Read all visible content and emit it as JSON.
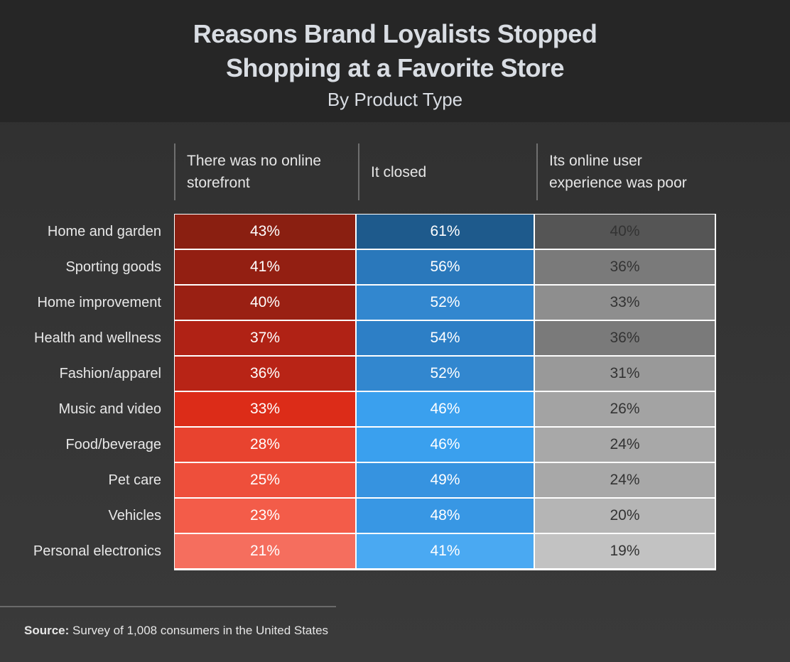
{
  "chart_data": {
    "type": "table",
    "title": "Reasons Brand Loyalists Stopped Shopping at a Favorite Store",
    "subtitle": "By Product Type",
    "columns": [
      "There was no online storefront",
      "It closed",
      "Its online user experience was poor"
    ],
    "rows": [
      {
        "label": "Home and garden",
        "values": [
          "43%",
          "61%",
          "40%"
        ],
        "colors": [
          "#8a1f11",
          "#1e5a8c",
          "#555555"
        ]
      },
      {
        "label": "Sporting goods",
        "values": [
          "41%",
          "56%",
          "36%"
        ],
        "colors": [
          "#931f12",
          "#2a78bb",
          "#7a7a7a"
        ]
      },
      {
        "label": "Home improvement",
        "values": [
          "40%",
          "52%",
          "33%"
        ],
        "colors": [
          "#9a2013",
          "#3287cf",
          "#8e8e8e"
        ]
      },
      {
        "label": "Health and wellness",
        "values": [
          "37%",
          "54%",
          "36%"
        ],
        "colors": [
          "#b02215",
          "#2d7fc6",
          "#7a7a7a"
        ]
      },
      {
        "label": "Fashion/apparel",
        "values": [
          "36%",
          "52%",
          "31%"
        ],
        "colors": [
          "#b82416",
          "#3287cf",
          "#999999"
        ]
      },
      {
        "label": "Music and video",
        "values": [
          "33%",
          "46%",
          "26%"
        ],
        "colors": [
          "#dc2c18",
          "#3aa0ee",
          "#a3a3a3"
        ]
      },
      {
        "label": "Food/beverage",
        "values": [
          "28%",
          "46%",
          "24%"
        ],
        "colors": [
          "#e8432f",
          "#3aa0ee",
          "#a8a8a8"
        ]
      },
      {
        "label": "Pet care",
        "values": [
          "25%",
          "49%",
          "24%"
        ],
        "colors": [
          "#ee4f3b",
          "#3693e0",
          "#a8a8a8"
        ]
      },
      {
        "label": "Vehicles",
        "values": [
          "23%",
          "48%",
          "20%"
        ],
        "colors": [
          "#f35c49",
          "#3897e4",
          "#b5b5b5"
        ]
      },
      {
        "label": "Personal electronics",
        "values": [
          "21%",
          "41%",
          "19%"
        ],
        "colors": [
          "#f56e5e",
          "#4aa9f2",
          "#c2c2c2"
        ]
      }
    ],
    "text_colors": [
      "#ffffff",
      "#ffffff",
      "#333333"
    ]
  },
  "source": {
    "label": "Source:",
    "text": "Survey of 1,008 consumers in the United States"
  }
}
